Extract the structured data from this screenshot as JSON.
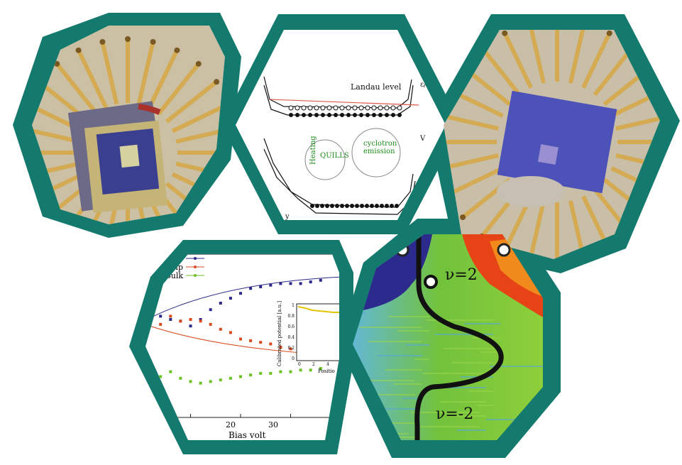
{
  "colors": {
    "frame": "#147a6e",
    "chip_gold": "#c9a04a",
    "chip_purple": "#4f4fb3",
    "series_right": "#2b2a8a",
    "series_left": "#d94a1c",
    "series_bulk": "#6cc224",
    "map_blue": "#2c2a8c",
    "map_green": "#6bc33c",
    "map_red": "#e64416"
  },
  "panels": [
    {
      "name": "chip-photo-left",
      "kind": "photo",
      "icon": "chip-icon"
    },
    {
      "name": "landau-diagram",
      "kind": "diagram",
      "icon": "band-diagram-icon"
    },
    {
      "name": "chip-photo-right",
      "kind": "photo",
      "icon": "chip-icon"
    },
    {
      "name": "bias-chart",
      "kind": "chart",
      "icon": "chart-icon"
    },
    {
      "name": "potential-map",
      "kind": "heatmap",
      "icon": "heatmap-icon"
    }
  ],
  "diagram": {
    "axis_energy": "ε/e",
    "axis_v": "V",
    "axis_y": "y",
    "landau_level": "Landau level",
    "heating": "Heating",
    "quills": "QUILLS",
    "cyclotron": "cyclotron",
    "emission": "emission",
    "mu": "μ",
    "mu_sub": "stub"
  },
  "chart_data": {
    "type": "scatter",
    "legend": [
      "ght strip",
      "left strip",
      "bulk"
    ],
    "xlabel": "Bias volt",
    "xticks": [
      "20",
      "30"
    ],
    "series": [
      {
        "name": "ght strip",
        "x": [
          4,
          6,
          8,
          10,
          12,
          14,
          16,
          18,
          20,
          22,
          24,
          26,
          28,
          30,
          32,
          34,
          36
        ],
        "y": [
          0.62,
          0.6,
          0.59,
          0.56,
          0.6,
          0.66,
          0.7,
          0.73,
          0.76,
          0.79,
          0.8,
          0.81,
          0.82,
          0.82,
          0.82,
          0.83,
          0.84
        ]
      },
      {
        "name": "left strip",
        "x": [
          4,
          6,
          8,
          10,
          12,
          14,
          16,
          18,
          20,
          22,
          24,
          26,
          28,
          30,
          32,
          34,
          36
        ],
        "y": [
          0.57,
          0.62,
          0.59,
          0.6,
          0.59,
          0.57,
          0.54,
          0.52,
          0.48,
          0.47,
          0.46,
          0.45,
          0.43,
          0.42,
          0.41,
          0.41,
          0.4
        ]
      },
      {
        "name": "bulk",
        "x": [
          4,
          6,
          8,
          10,
          12,
          14,
          16,
          18,
          20,
          22,
          24,
          26,
          28,
          30,
          32,
          34,
          36
        ],
        "y": [
          0.25,
          0.28,
          0.24,
          0.22,
          0.21,
          0.22,
          0.23,
          0.24,
          0.25,
          0.26,
          0.27,
          0.27,
          0.28,
          0.28,
          0.29,
          0.29,
          0.3
        ]
      }
    ],
    "inset": {
      "ylabel": "Calibrated potential [a.u.]",
      "yticks": [
        "1",
        "0.8",
        "0.6",
        "0.4",
        "0.2",
        "0"
      ],
      "xticks": [
        "0",
        "2",
        "4"
      ],
      "xlabel": "Positio"
    }
  },
  "heatmap": {
    "label_top": "ν=2",
    "label_bottom": "ν=-2"
  }
}
